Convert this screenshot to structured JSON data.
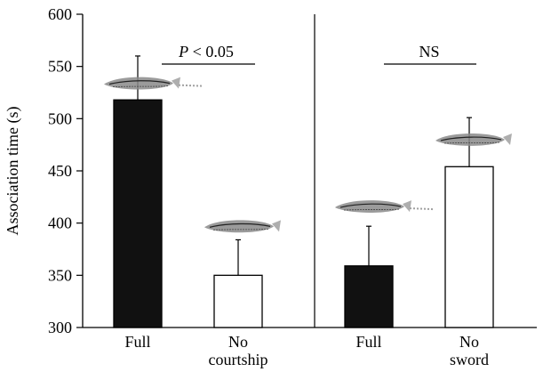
{
  "chart_data": {
    "type": "bar",
    "ylabel": "Association time (s)",
    "xlabel": "",
    "title": "",
    "ylim": [
      300,
      600
    ],
    "yticks": [
      300,
      350,
      400,
      450,
      500,
      550,
      600
    ],
    "grid": false,
    "categories": [
      "Full",
      "No courtship",
      "Full",
      "No sword"
    ],
    "category_lines": [
      [
        "Full"
      ],
      [
        "No",
        "courtship"
      ],
      [
        "Full"
      ],
      [
        "No",
        "sword"
      ]
    ],
    "values": [
      518,
      350,
      359,
      454
    ],
    "error_upper": [
      560,
      384,
      397,
      501
    ],
    "bar_fill": [
      "filled",
      "open",
      "filled",
      "open"
    ],
    "panels": [
      {
        "bars": [
          0,
          1
        ],
        "annotation": "P < 0.05",
        "annotation_italic": "P",
        "annotation_rest": " < 0.05"
      },
      {
        "bars": [
          2,
          3
        ],
        "annotation": "NS"
      }
    ],
    "fish_levels": [
      533,
      396,
      415,
      479
    ],
    "colors": {
      "filled": "#111111",
      "open": "#ffffff",
      "axis": "#000000"
    }
  }
}
